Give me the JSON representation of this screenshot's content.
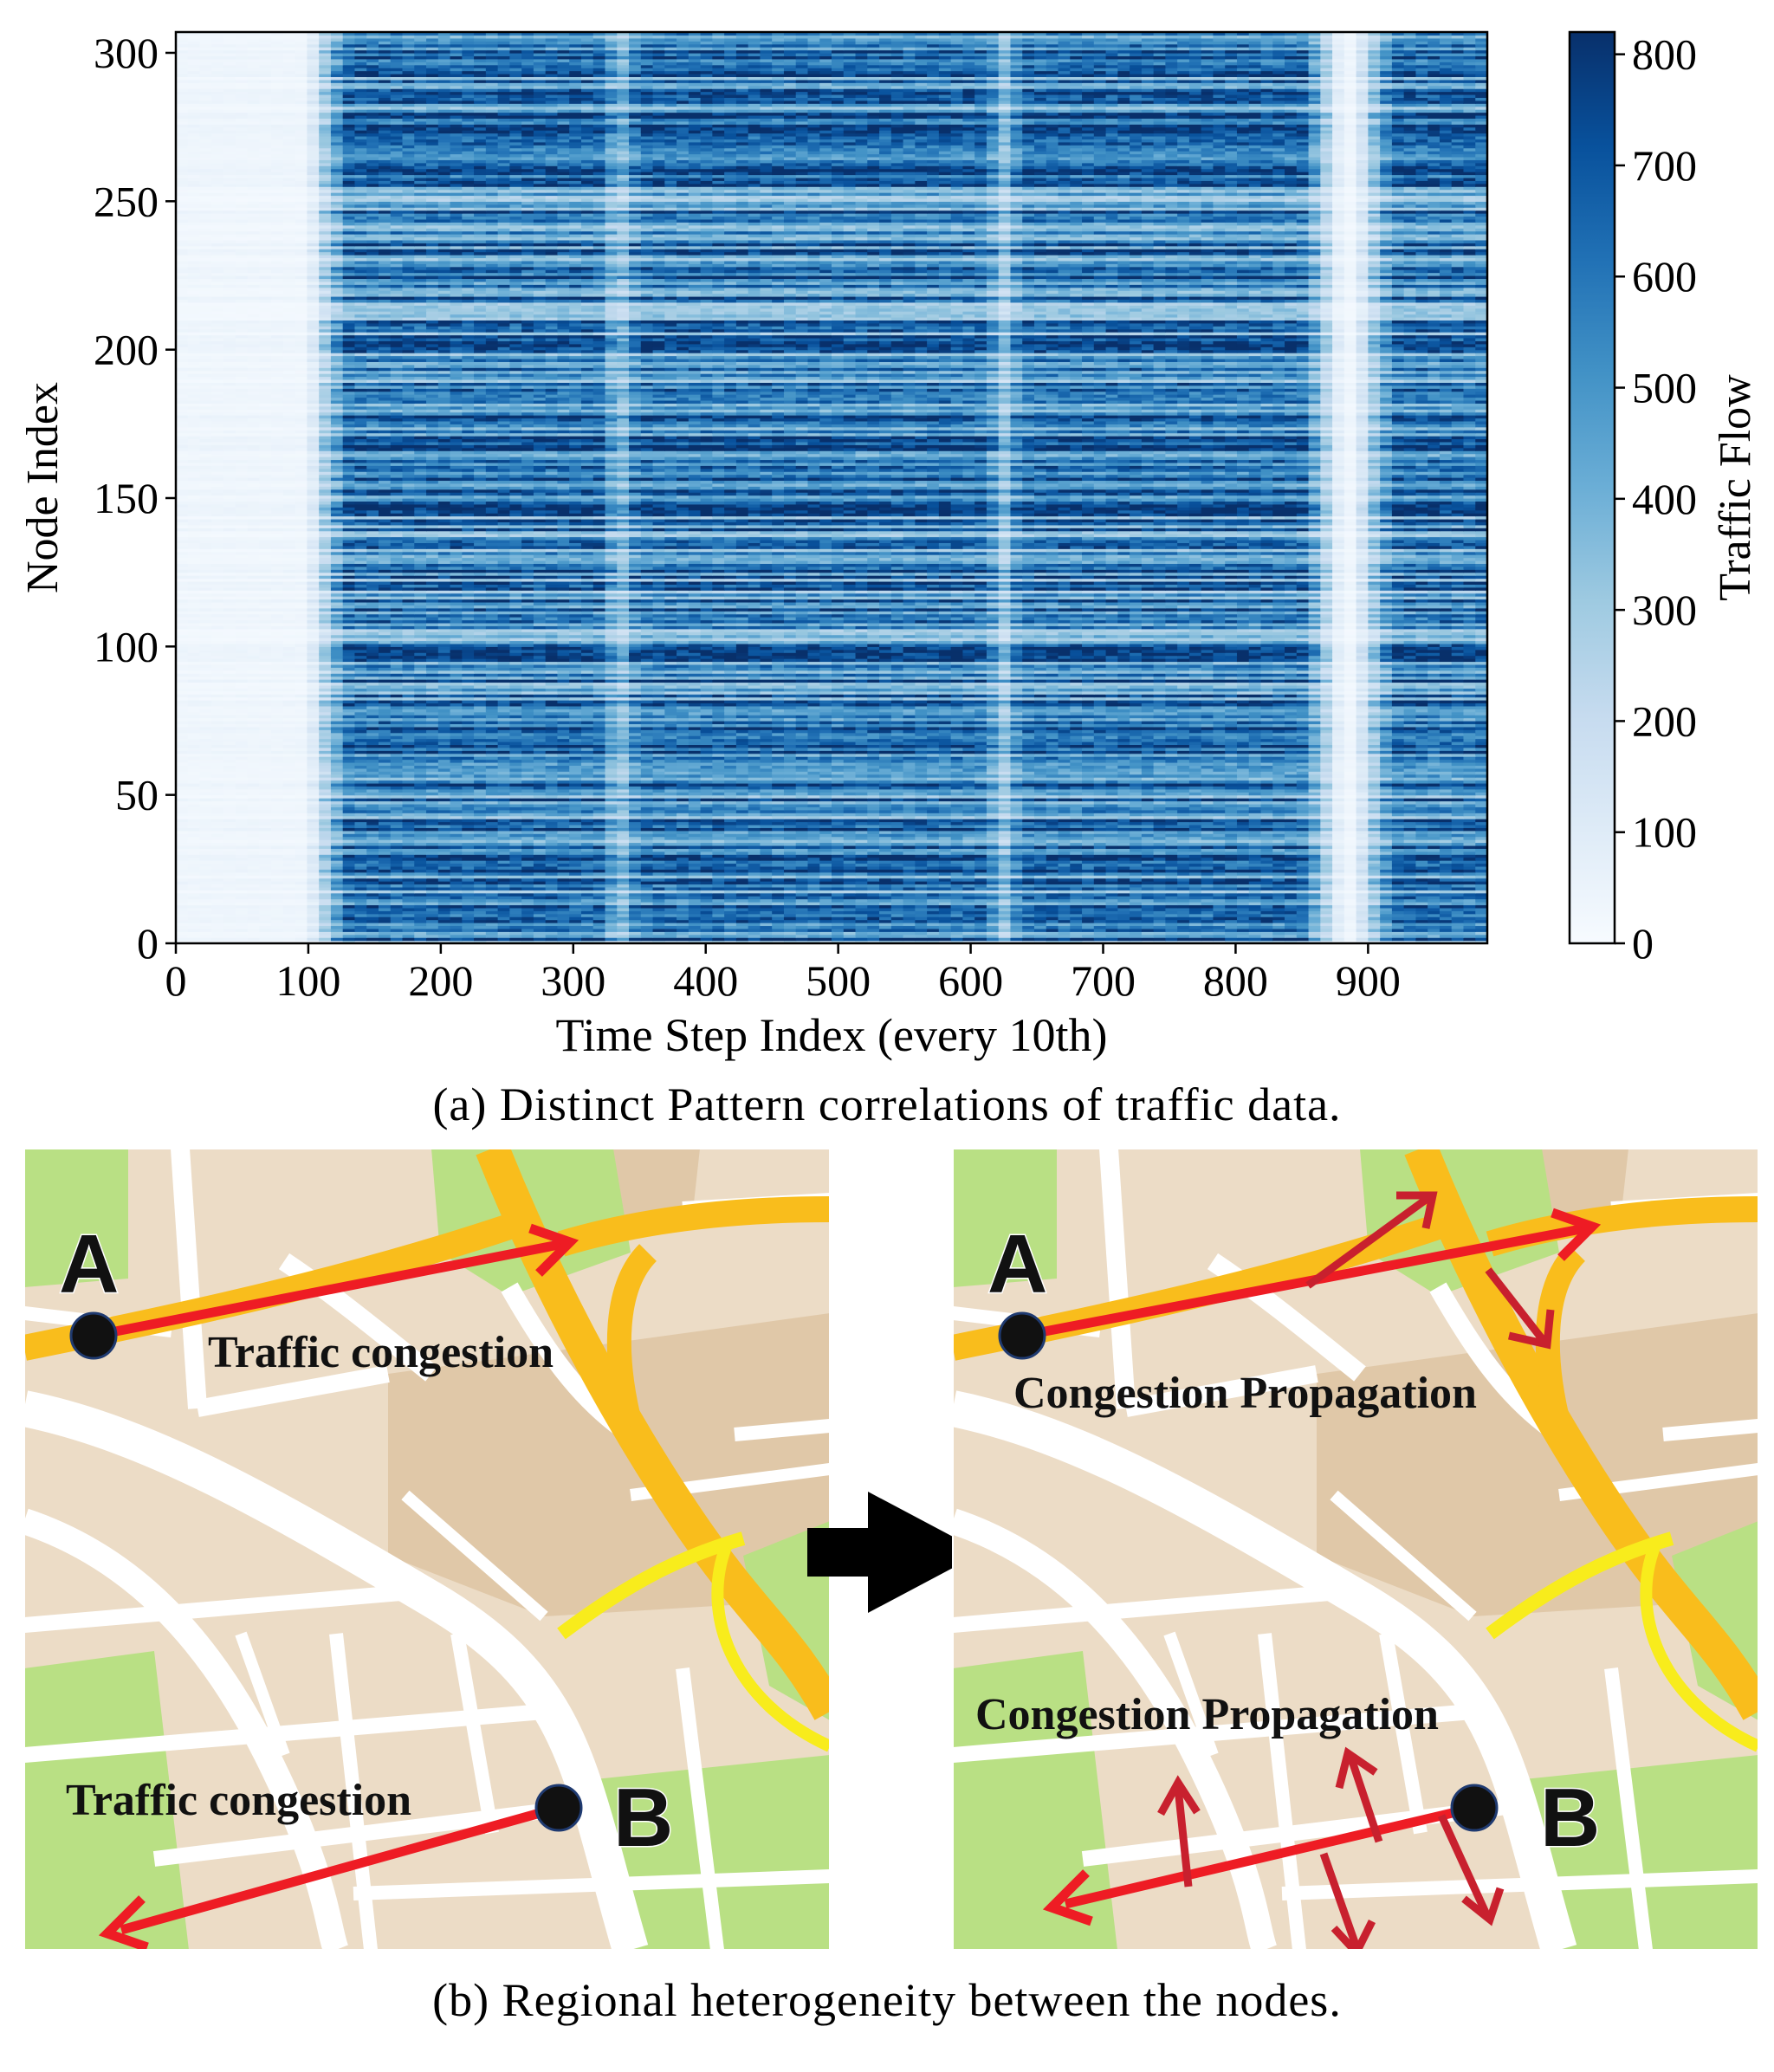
{
  "chart_data": {
    "type": "heatmap",
    "title": "",
    "xlabel": "Time Step Index (every 10th)",
    "ylabel": "Node Index",
    "xlim": [
      0,
      990
    ],
    "ylim": [
      0,
      307
    ],
    "xticks": [
      0,
      100,
      200,
      300,
      400,
      500,
      600,
      700,
      800,
      900
    ],
    "yticks": [
      0,
      50,
      100,
      150,
      200,
      250,
      300
    ],
    "colormap": "Blues",
    "colorbar": {
      "label": "Traffic Flow",
      "range": [
        0,
        820
      ],
      "ticks": [
        0,
        100,
        200,
        300,
        400,
        500,
        600,
        700,
        800
      ]
    },
    "pattern": {
      "high_flow_bands_x": [
        [
          130,
          320
        ],
        [
          350,
          610
        ],
        [
          640,
          850
        ],
        [
          920,
          990
        ]
      ],
      "low_flow_bands_x": [
        [
          0,
          110
        ],
        [
          320,
          350
        ],
        [
          610,
          640
        ],
        [
          850,
          910
        ]
      ],
      "peak_value": 780
    },
    "caption": "(a) Distinct Pattern correlations of traffic data."
  },
  "maps": {
    "caption": "(b) Regional heterogeneity between the nodes.",
    "left": {
      "node_a": "A",
      "node_b": "B",
      "label_top": "Traffic congestion",
      "label_bottom": "Traffic congestion"
    },
    "right": {
      "node_a": "A",
      "node_b": "B",
      "label_top": "Congestion Propagation",
      "label_bottom": "Congestion Propagation"
    },
    "colors": {
      "land": "#ecdcc6",
      "block": "#e0c8a8",
      "park": "#b9e084",
      "road": "#ffffff",
      "highway": "#f9bd1c",
      "secondary": "#f8ec1c",
      "arrow": "#ee1c24",
      "propagation_arrow": "#c8202e",
      "node": "#111111"
    }
  }
}
